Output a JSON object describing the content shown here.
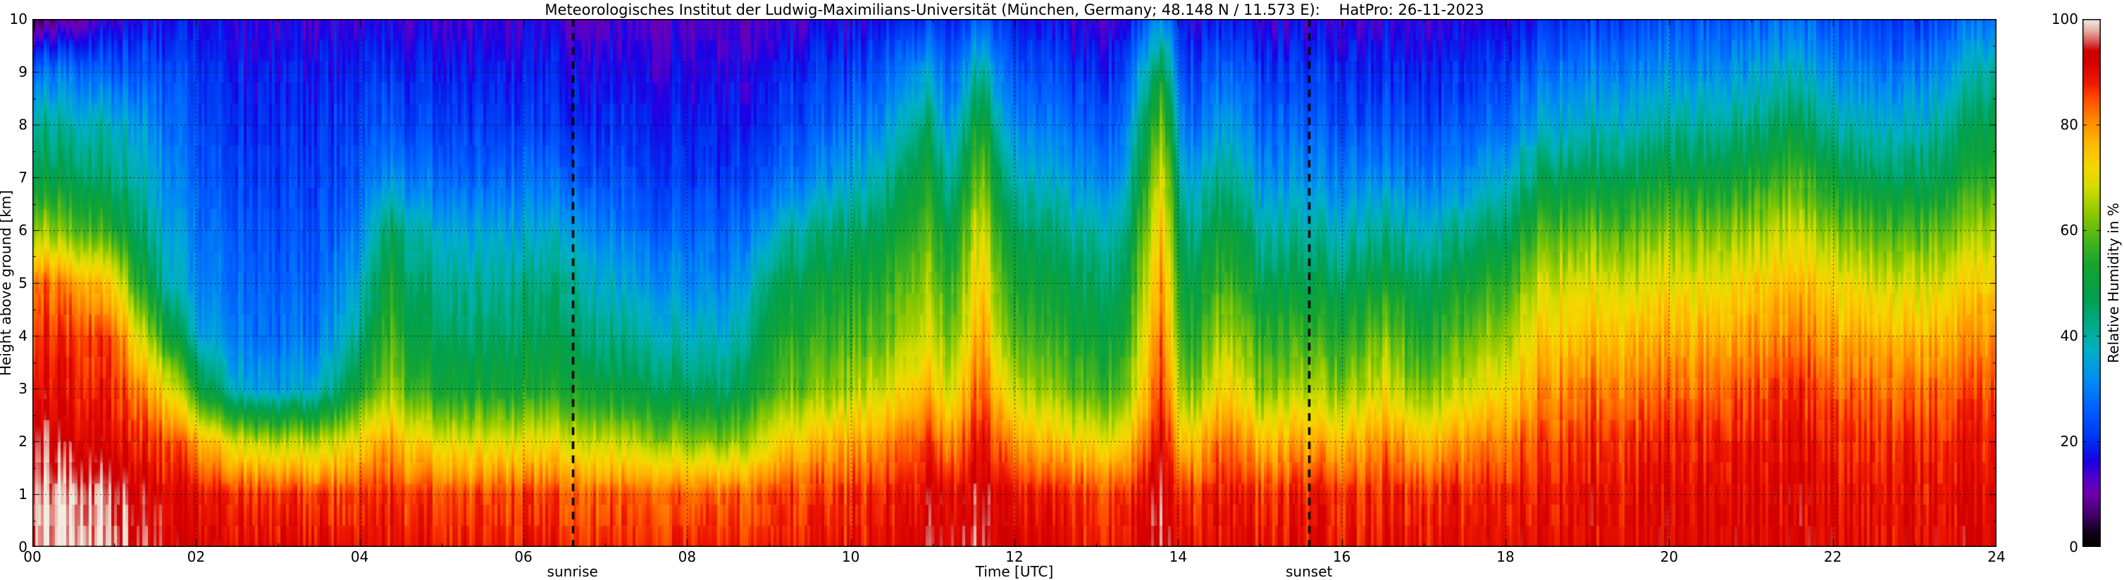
{
  "title": "Meteorologisches Institut der Ludwig-Maximilians-Universität (München, Germany; 48.148 N / 11.573 E):    HatPro: 26-11-2023",
  "axes": {
    "xlabel": "Time [UTC]",
    "ylabel": "Height above ground [km]",
    "x_ticks": [
      "00",
      "02",
      "04",
      "06",
      "08",
      "10",
      "12",
      "14",
      "16",
      "18",
      "20",
      "22",
      "24"
    ],
    "y_ticks": [
      "0",
      "1",
      "2",
      "3",
      "4",
      "5",
      "6",
      "7",
      "8",
      "9",
      "10"
    ]
  },
  "colorbar": {
    "label": "Relative Humidity in %",
    "ticks": [
      "0",
      "20",
      "40",
      "60",
      "80",
      "100"
    ],
    "min": 0,
    "max": 100
  },
  "chart_data": {
    "type": "heatmap",
    "title": "HatPro microwave radiometer relative humidity time-height section, 26-11-2023",
    "xlabel": "Time [UTC]",
    "ylabel": "Height above ground [km]",
    "zlabel": "Relative Humidity in %",
    "x_range": [
      0,
      24
    ],
    "y_range": [
      0,
      10
    ],
    "z_range": [
      0,
      100
    ],
    "grid": "dashed",
    "heights": [
      0,
      1,
      2,
      3,
      4,
      5,
      6,
      7,
      8,
      9,
      10
    ],
    "times": [
      0,
      0.5,
      1,
      1.3,
      1.7,
      2,
      2.5,
      3,
      3.5,
      4,
      4.4,
      4.7,
      5,
      5.5,
      6,
      6.6,
      7,
      7.5,
      8,
      8.5,
      9,
      9.3,
      9.7,
      10,
      10.4,
      10.9,
      11.2,
      11.6,
      11.9,
      12.3,
      12.8,
      13.3,
      13.8,
      14.1,
      14.6,
      15,
      15.6,
      16,
      16.5,
      17,
      17.5,
      18,
      18.4,
      19,
      19.5,
      20,
      20.5,
      21,
      21.5,
      22,
      22.5,
      23,
      23.5,
      24
    ],
    "values": [
      [
        99,
        99,
        96,
        91,
        88,
        84,
        66,
        50,
        42,
        30,
        6
      ],
      [
        100,
        99,
        93,
        89,
        87,
        80,
        60,
        47,
        40,
        28,
        10
      ],
      [
        98,
        97,
        91,
        88,
        85,
        74,
        55,
        44,
        38,
        26,
        15
      ],
      [
        95,
        93,
        88,
        82,
        70,
        55,
        45,
        40,
        34,
        25,
        17
      ],
      [
        92,
        90,
        85,
        70,
        50,
        38,
        34,
        30,
        27,
        23,
        17
      ],
      [
        91,
        88,
        78,
        52,
        36,
        30,
        28,
        25,
        22,
        20,
        16
      ],
      [
        90,
        87,
        68,
        36,
        29,
        27,
        25,
        22,
        20,
        18,
        15
      ],
      [
        90,
        86,
        65,
        33,
        27,
        25,
        23,
        21,
        19,
        17,
        14
      ],
      [
        90,
        86,
        66,
        36,
        29,
        26,
        24,
        22,
        20,
        18,
        14
      ],
      [
        89,
        86,
        72,
        52,
        42,
        36,
        30,
        25,
        22,
        19,
        15
      ],
      [
        89,
        87,
        78,
        64,
        58,
        52,
        46,
        32,
        24,
        20,
        15
      ],
      [
        89,
        86,
        72,
        55,
        48,
        44,
        38,
        28,
        22,
        19,
        15
      ],
      [
        88,
        85,
        70,
        52,
        46,
        42,
        36,
        27,
        22,
        18,
        14
      ],
      [
        88,
        85,
        69,
        51,
        44,
        40,
        34,
        26,
        21,
        18,
        14
      ],
      [
        88,
        85,
        70,
        52,
        46,
        42,
        35,
        27,
        21,
        18,
        14
      ],
      [
        88,
        85,
        70,
        54,
        48,
        43,
        36,
        27,
        21,
        18,
        14
      ],
      [
        88,
        84,
        68,
        50,
        42,
        37,
        30,
        24,
        20,
        17,
        13
      ],
      [
        87,
        84,
        65,
        48,
        40,
        33,
        27,
        22,
        19,
        16,
        13
      ],
      [
        87,
        83,
        62,
        45,
        37,
        31,
        26,
        21,
        18,
        15,
        12
      ],
      [
        87,
        83,
        61,
        44,
        36,
        30,
        25,
        20,
        17,
        15,
        12
      ],
      [
        88,
        85,
        70,
        56,
        50,
        44,
        34,
        25,
        20,
        17,
        13
      ],
      [
        88,
        86,
        74,
        60,
        54,
        48,
        40,
        28,
        23,
        19,
        14
      ],
      [
        89,
        86,
        76,
        62,
        56,
        50,
        43,
        32,
        25,
        21,
        15
      ],
      [
        89,
        87,
        78,
        65,
        58,
        52,
        45,
        35,
        28,
        22,
        16
      ],
      [
        90,
        88,
        80,
        68,
        60,
        55,
        48,
        40,
        32,
        25,
        18
      ],
      [
        94,
        92,
        87,
        78,
        70,
        65,
        60,
        54,
        46,
        36,
        22
      ],
      [
        92,
        90,
        80,
        68,
        60,
        54,
        48,
        40,
        32,
        25,
        18
      ],
      [
        95,
        93,
        90,
        85,
        80,
        75,
        70,
        62,
        54,
        42,
        26
      ],
      [
        92,
        89,
        80,
        68,
        60,
        54,
        48,
        40,
        32,
        25,
        18
      ],
      [
        90,
        87,
        75,
        62,
        55,
        49,
        43,
        35,
        28,
        22,
        16
      ],
      [
        89,
        87,
        73,
        59,
        52,
        47,
        41,
        33,
        26,
        21,
        15
      ],
      [
        89,
        87,
        72,
        58,
        52,
        46,
        40,
        32,
        26,
        21,
        15
      ],
      [
        96,
        94,
        91,
        88,
        84,
        80,
        76,
        70,
        62,
        50,
        32
      ],
      [
        89,
        87,
        74,
        60,
        53,
        48,
        42,
        34,
        27,
        22,
        16
      ],
      [
        91,
        89,
        84,
        74,
        66,
        58,
        51,
        43,
        35,
        27,
        19
      ],
      [
        89,
        87,
        75,
        62,
        55,
        48,
        40,
        32,
        26,
        21,
        15
      ],
      [
        90,
        88,
        78,
        65,
        56,
        48,
        40,
        32,
        26,
        21,
        15
      ],
      [
        89,
        87,
        76,
        62,
        54,
        46,
        38,
        30,
        24,
        20,
        14
      ],
      [
        90,
        88,
        81,
        70,
        62,
        52,
        42,
        32,
        25,
        20,
        15
      ],
      [
        89,
        87,
        75,
        60,
        52,
        45,
        36,
        28,
        22,
        18,
        14
      ],
      [
        90,
        88,
        80,
        68,
        60,
        52,
        42,
        32,
        25,
        20,
        15
      ],
      [
        90,
        88,
        82,
        72,
        64,
        56,
        46,
        36,
        28,
        22,
        16
      ],
      [
        91,
        89,
        86,
        80,
        74,
        68,
        58,
        46,
        36,
        28,
        20
      ],
      [
        91,
        90,
        87,
        82,
        76,
        70,
        60,
        48,
        38,
        30,
        22
      ],
      [
        91,
        90,
        87,
        82,
        76,
        69,
        59,
        48,
        38,
        30,
        22
      ],
      [
        91,
        90,
        88,
        83,
        77,
        70,
        62,
        50,
        40,
        32,
        24
      ],
      [
        91,
        90,
        88,
        83,
        77,
        70,
        61,
        50,
        40,
        32,
        24
      ],
      [
        91,
        90,
        88,
        84,
        78,
        72,
        63,
        52,
        42,
        33,
        25
      ],
      [
        92,
        91,
        90,
        87,
        82,
        76,
        68,
        58,
        48,
        38,
        28
      ],
      [
        91,
        90,
        88,
        84,
        78,
        72,
        62,
        50,
        40,
        32,
        24
      ],
      [
        91,
        90,
        88,
        84,
        78,
        70,
        60,
        48,
        38,
        30,
        22
      ],
      [
        91,
        90,
        88,
        83,
        76,
        68,
        58,
        46,
        37,
        29,
        21
      ],
      [
        91,
        90,
        88,
        84,
        78,
        71,
        62,
        51,
        43,
        35,
        26
      ],
      [
        92,
        91,
        89,
        86,
        81,
        75,
        67,
        57,
        50,
        42,
        30
      ]
    ],
    "events": [
      {
        "label": "sunrise",
        "time": 6.6
      },
      {
        "label": "sunset",
        "time": 15.6
      }
    ],
    "colormap": [
      [
        0,
        "#000000"
      ],
      [
        3,
        "#16001e"
      ],
      [
        6,
        "#43006b"
      ],
      [
        10,
        "#6e00b0"
      ],
      [
        13,
        "#5400cc"
      ],
      [
        16,
        "#1c00e4"
      ],
      [
        20,
        "#0030f0"
      ],
      [
        26,
        "#0060ff"
      ],
      [
        32,
        "#0090f0"
      ],
      [
        37,
        "#00b0c8"
      ],
      [
        42,
        "#00ad8a"
      ],
      [
        47,
        "#00a050"
      ],
      [
        53,
        "#14a432"
      ],
      [
        58,
        "#46b41e"
      ],
      [
        63,
        "#8cc800"
      ],
      [
        68,
        "#d2dc00"
      ],
      [
        72,
        "#f5d800"
      ],
      [
        77,
        "#ffb400"
      ],
      [
        81,
        "#ff8800"
      ],
      [
        85,
        "#ff4d00"
      ],
      [
        88,
        "#ee1900"
      ],
      [
        92,
        "#d60000"
      ],
      [
        94,
        "#cd0000"
      ],
      [
        96,
        "#d86060"
      ],
      [
        98,
        "#e8b4a8"
      ],
      [
        100,
        "#f2ece2"
      ]
    ]
  }
}
